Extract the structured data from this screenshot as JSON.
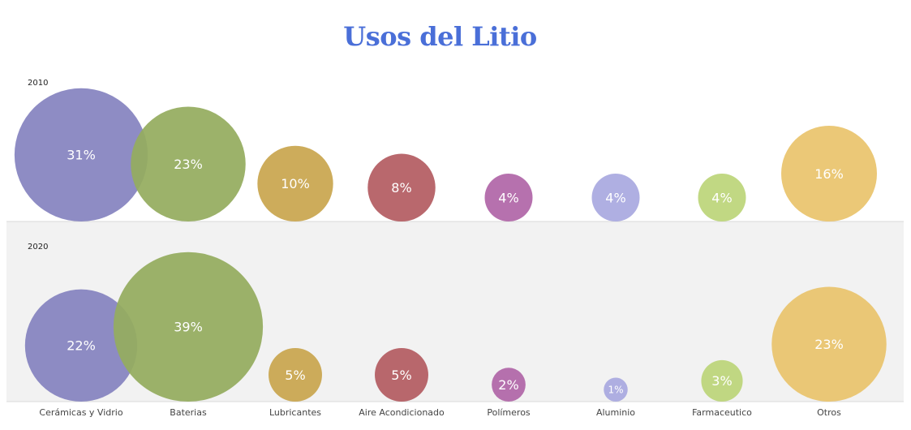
{
  "chart_data": {
    "type": "bubble",
    "title": "Usos del Litio",
    "categories": [
      "Cerámicas y Vidrio",
      "Baterias",
      "Lubricantes",
      "Aire Acondicionado",
      "Polímeros",
      "Aluminio",
      "Farmaceutico",
      "Otros"
    ],
    "series": [
      {
        "name": "2010",
        "values": [
          31,
          23,
          10,
          8,
          4,
          4,
          4,
          16
        ],
        "labels": [
          "31%",
          "23%",
          "10%",
          "8%",
          "4%",
          "4%",
          "4%",
          "16%"
        ]
      },
      {
        "name": "2020",
        "values": [
          22,
          39,
          5,
          5,
          2,
          1,
          3,
          23
        ],
        "labels": [
          "22%",
          "39%",
          "5%",
          "5%",
          "2%",
          "1%",
          "3%",
          "23%"
        ]
      }
    ],
    "colors": [
      "#8583bf",
      "#94ac5f",
      "#c9a64f",
      "#b45c62",
      "#b066a8",
      "#a9a9e0",
      "#bcd57a",
      "#e9c46d"
    ],
    "row_backgrounds": [
      "#ffffff",
      "#f2f2f2"
    ],
    "legend": "none",
    "grid": false
  }
}
